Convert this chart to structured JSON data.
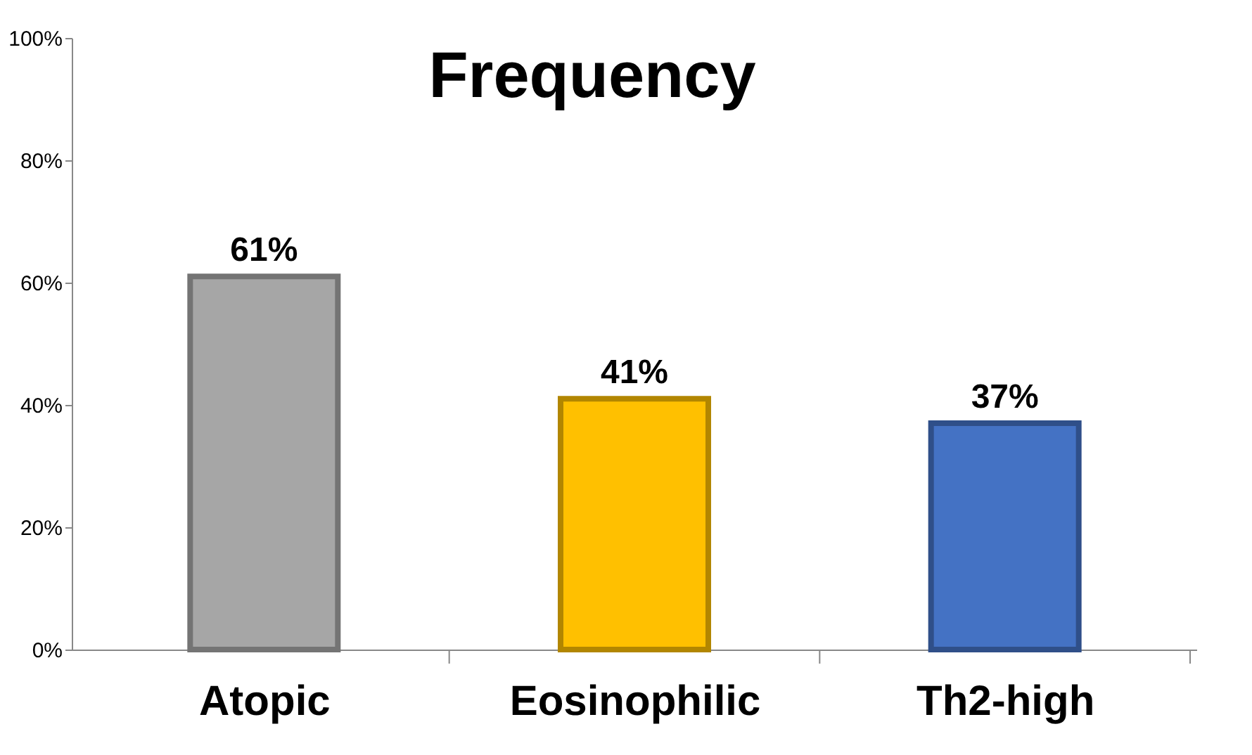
{
  "chart_data": {
    "type": "bar",
    "title": "Frequency",
    "categories": [
      "Atopic",
      "Eosinophilic",
      "Th2-high"
    ],
    "values": [
      61,
      41,
      37
    ],
    "colors": [
      "#a6a6a6",
      "#ffc000",
      "#4472c4"
    ],
    "value_labels": [
      "61%",
      "41%",
      "37%"
    ],
    "ylim": [
      0,
      100
    ],
    "yticks": [
      {
        "value": 0,
        "label": "0%"
      },
      {
        "value": 20,
        "label": "20%"
      },
      {
        "value": 40,
        "label": "40%"
      },
      {
        "value": 60,
        "label": "60%"
      },
      {
        "value": 80,
        "label": "80%"
      },
      {
        "value": 100,
        "label": "100%"
      }
    ],
    "grid": false
  }
}
